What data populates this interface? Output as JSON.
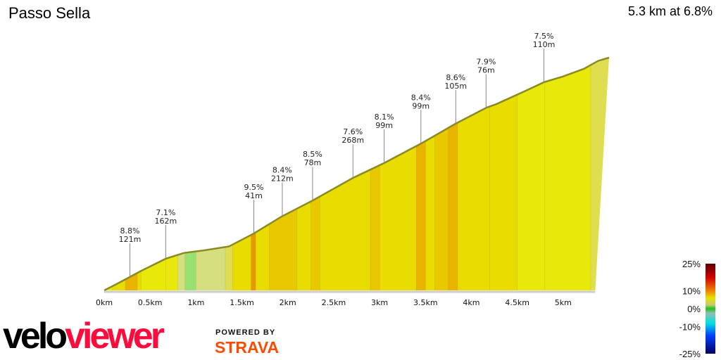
{
  "header": {
    "title": "Passo Sella",
    "summary": "5.3 km at 6.8%"
  },
  "chart_data": {
    "type": "area",
    "title": "Passo Sella",
    "xlabel": "",
    "ylabel": "",
    "xlim": [
      0,
      5.5
    ],
    "x_ticks": [
      "0km",
      "0.5km",
      "1km",
      "1.5km",
      "2km",
      "2.5km",
      "3km",
      "3.5km",
      "4km",
      "4.5km",
      "5km"
    ],
    "x_tick_values": [
      0,
      0.5,
      1,
      1.5,
      2,
      2.5,
      3,
      3.5,
      4,
      4.5,
      5
    ],
    "profile": {
      "distance_km": [
        0,
        0.09,
        0.23,
        0.4,
        0.67,
        0.87,
        1.09,
        1.36,
        1.63,
        1.93,
        2.27,
        2.71,
        3.05,
        3.45,
        3.83,
        4.17,
        4.27,
        4.58,
        4.79,
        5.0,
        5.23,
        5.38,
        5.5
      ],
      "elevation_gain_m": [
        0,
        6.5,
        17,
        30,
        49,
        58,
        62,
        68,
        88,
        114,
        139,
        174,
        197,
        227,
        258,
        283,
        288,
        308,
        322,
        331,
        343,
        355,
        360
      ]
    },
    "gradient_segments": [
      [
        0,
        0.09,
        5
      ],
      [
        0.09,
        0.23,
        7
      ],
      [
        0.23,
        0.36,
        9
      ],
      [
        0.36,
        0.4,
        7
      ],
      [
        0.4,
        0.67,
        6.5
      ],
      [
        0.67,
        0.8,
        6
      ],
      [
        0.8,
        0.88,
        3
      ],
      [
        0.88,
        1.0,
        1
      ],
      [
        1.0,
        1.32,
        2.5
      ],
      [
        1.32,
        1.4,
        4
      ],
      [
        1.4,
        1.6,
        7
      ],
      [
        1.6,
        1.65,
        10
      ],
      [
        1.65,
        1.8,
        7
      ],
      [
        1.8,
        2.1,
        8.5
      ],
      [
        2.1,
        2.25,
        7
      ],
      [
        2.25,
        2.35,
        8.5
      ],
      [
        2.35,
        2.9,
        7
      ],
      [
        2.9,
        3.0,
        8
      ],
      [
        3.0,
        3.4,
        7
      ],
      [
        3.4,
        3.5,
        9
      ],
      [
        3.5,
        3.6,
        7
      ],
      [
        3.6,
        3.75,
        8.5
      ],
      [
        3.75,
        3.85,
        9
      ],
      [
        3.85,
        4.2,
        7.5
      ],
      [
        4.2,
        4.5,
        7
      ],
      [
        4.5,
        4.8,
        6
      ],
      [
        4.8,
        5.3,
        5
      ],
      [
        5.3,
        5.5,
        4
      ]
    ],
    "annotations": [
      {
        "km": 0.28,
        "grade": "8.8%",
        "length": "121m"
      },
      {
        "km": 0.67,
        "grade": "7.1%",
        "length": "162m"
      },
      {
        "km": 1.63,
        "grade": "9.5%",
        "length": "41m"
      },
      {
        "km": 1.94,
        "grade": "8.4%",
        "length": "212m"
      },
      {
        "km": 2.27,
        "grade": "8.5%",
        "length": "78m"
      },
      {
        "km": 2.71,
        "grade": "7.6%",
        "length": "268m"
      },
      {
        "km": 3.05,
        "grade": "8.1%",
        "length": "99m"
      },
      {
        "km": 3.45,
        "grade": "8.4%",
        "length": "99m"
      },
      {
        "km": 3.83,
        "grade": "8.6%",
        "length": "105m"
      },
      {
        "km": 4.16,
        "grade": "7.9%",
        "length": "76m"
      },
      {
        "km": 4.79,
        "grade": "7.5%",
        "length": "110m"
      }
    ],
    "color_scale": {
      "labels": [
        "25%",
        "10%",
        "0%",
        "-10%",
        "-25%"
      ],
      "values": [
        25,
        10,
        0,
        -10,
        -25
      ]
    },
    "grid": false,
    "legend": "bottom-right"
  },
  "branding": {
    "logo_velo": "velo",
    "logo_viewer": "viewer",
    "powered_by": "POWERED BY",
    "strava": "STRAVA"
  },
  "colors": {
    "line": "#8a8a20",
    "logo_red": "#fc0c3c",
    "strava_orange": "#fc4c02"
  }
}
